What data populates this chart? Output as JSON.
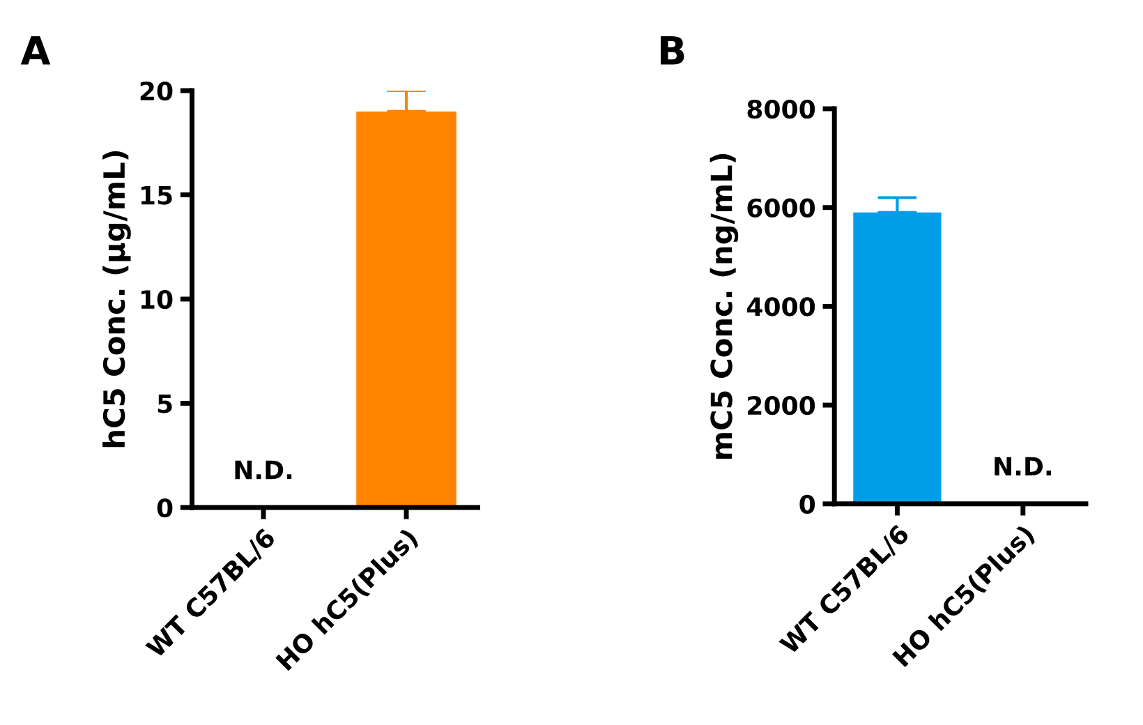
{
  "chart_data": [
    {
      "type": "bar",
      "title": "A",
      "ylabel": "hC5 Conc. (µg/mL)",
      "categories": [
        "WT C57BL/6",
        "HO hC5(Plus)"
      ],
      "values": [
        null,
        19
      ],
      "errors": [
        null,
        [
          19,
          20
        ]
      ],
      "colors": [
        "#ff8400",
        "#ff8400"
      ],
      "ylim": [
        0,
        20
      ],
      "yticks": [
        0,
        5,
        10,
        15,
        20
      ],
      "grid": false,
      "annotations": [
        "N.D."
      ]
    },
    {
      "type": "bar",
      "title": "B",
      "ylabel": "mC5 Conc. (ng/mL)",
      "categories": [
        "WT C57BL/6",
        "HO hC5(Plus)"
      ],
      "values": [
        5900,
        null
      ],
      "errors": [
        [
          5900,
          6200
        ],
        null
      ],
      "colors": [
        "#009ee6",
        "#009ee6"
      ],
      "ylim": [
        0,
        8000
      ],
      "yticks": [
        0,
        2000,
        4000,
        6000,
        8000
      ],
      "grid": false,
      "annotations": [
        "N.D."
      ]
    }
  ]
}
